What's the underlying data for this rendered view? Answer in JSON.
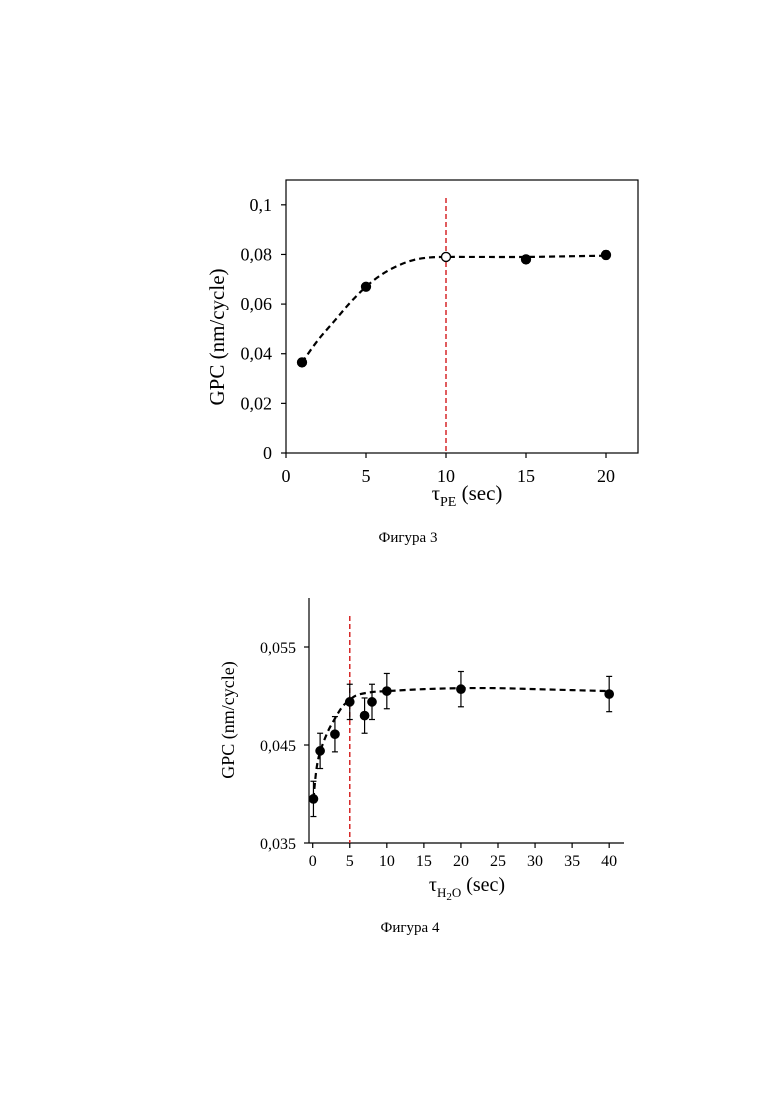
{
  "chart_data": [
    {
      "type": "scatter",
      "caption": "Фигура 3",
      "xlabel": {
        "main": "τ",
        "sub": "PE",
        "unit": " (sec)"
      },
      "ylabel": "GPC (nm/cycle)",
      "xlim": [
        0,
        22
      ],
      "ylim": [
        0,
        0.11
      ],
      "xticks": [
        0,
        5,
        10,
        15,
        20
      ],
      "xtick_labels": [
        "0",
        "5",
        "10",
        "15",
        "20"
      ],
      "yticks": [
        0,
        0.02,
        0.04,
        0.06,
        0.08,
        0.1
      ],
      "ytick_labels": [
        "0",
        "0,02",
        "0,04",
        "0,06",
        "0,08",
        "0,1"
      ],
      "frame": "box",
      "points": [
        {
          "x": 1,
          "y": 0.0365,
          "err": 0.0015,
          "marker": "filled"
        },
        {
          "x": 5,
          "y": 0.067,
          "err": 0.0012,
          "marker": "filled"
        },
        {
          "x": 10,
          "y": 0.079,
          "err": 0.0012,
          "marker": "open"
        },
        {
          "x": 15,
          "y": 0.078,
          "err": 0.0015,
          "marker": "filled"
        },
        {
          "x": 20,
          "y": 0.0798,
          "err": 0.0016,
          "marker": "filled"
        }
      ],
      "fit_curve": [
        [
          1,
          0.0365
        ],
        [
          2,
          0.0455
        ],
        [
          3,
          0.053
        ],
        [
          4,
          0.0605
        ],
        [
          5,
          0.067
        ],
        [
          6,
          0.072
        ],
        [
          7,
          0.0755
        ],
        [
          8,
          0.0778
        ],
        [
          9,
          0.0788
        ],
        [
          10,
          0.079
        ],
        [
          12,
          0.079
        ],
        [
          15,
          0.079
        ],
        [
          18,
          0.0793
        ],
        [
          20,
          0.0795
        ]
      ],
      "vline": {
        "x": 10,
        "color": "#d62728"
      },
      "fit_color": "#000000"
    },
    {
      "type": "scatter",
      "caption": "Фигура 4",
      "xlabel": {
        "main": "τ",
        "sub": "H",
        "sub2": "2",
        "sub3": "O",
        "unit": " (sec)"
      },
      "ylabel": "GPC (nm/cycle)",
      "xlim": [
        -0.5,
        42
      ],
      "ylim": [
        0.035,
        0.06
      ],
      "xticks": [
        0,
        5,
        10,
        15,
        20,
        25,
        30,
        35,
        40
      ],
      "xtick_labels": [
        "0",
        "5",
        "10",
        "15",
        "20",
        "25",
        "30",
        "35",
        "40"
      ],
      "yticks": [
        0.035,
        0.045,
        0.055
      ],
      "ytick_labels": [
        "0,035",
        "0,045",
        "0,055"
      ],
      "frame": "axes",
      "points": [
        {
          "x": 0.1,
          "y": 0.0395,
          "err": 0.0018,
          "marker": "filled"
        },
        {
          "x": 1,
          "y": 0.0444,
          "err": 0.0018,
          "marker": "filled"
        },
        {
          "x": 3,
          "y": 0.0461,
          "err": 0.0018,
          "marker": "filled"
        },
        {
          "x": 5,
          "y": 0.0494,
          "err": 0.0018,
          "marker": "filled"
        },
        {
          "x": 7,
          "y": 0.048,
          "err": 0.0018,
          "marker": "filled"
        },
        {
          "x": 8,
          "y": 0.0494,
          "err": 0.0018,
          "marker": "filled"
        },
        {
          "x": 10,
          "y": 0.0505,
          "err": 0.0018,
          "marker": "filled"
        },
        {
          "x": 20,
          "y": 0.0507,
          "err": 0.0018,
          "marker": "filled"
        },
        {
          "x": 40,
          "y": 0.0502,
          "err": 0.0018,
          "marker": "filled"
        }
      ],
      "fit_curve": [
        [
          0.1,
          0.0395
        ],
        [
          0.5,
          0.0425
        ],
        [
          1,
          0.0443
        ],
        [
          2,
          0.0463
        ],
        [
          3,
          0.0477
        ],
        [
          4,
          0.0489
        ],
        [
          5,
          0.0496
        ],
        [
          6,
          0.0501
        ],
        [
          8,
          0.0504
        ],
        [
          10,
          0.0505
        ],
        [
          15,
          0.0507
        ],
        [
          20,
          0.0508
        ],
        [
          25,
          0.0508
        ],
        [
          30,
          0.0507
        ],
        [
          35,
          0.0506
        ],
        [
          40,
          0.0505
        ]
      ],
      "vline": {
        "x": 5,
        "color": "#d62728"
      },
      "fit_color": "#000000"
    }
  ]
}
